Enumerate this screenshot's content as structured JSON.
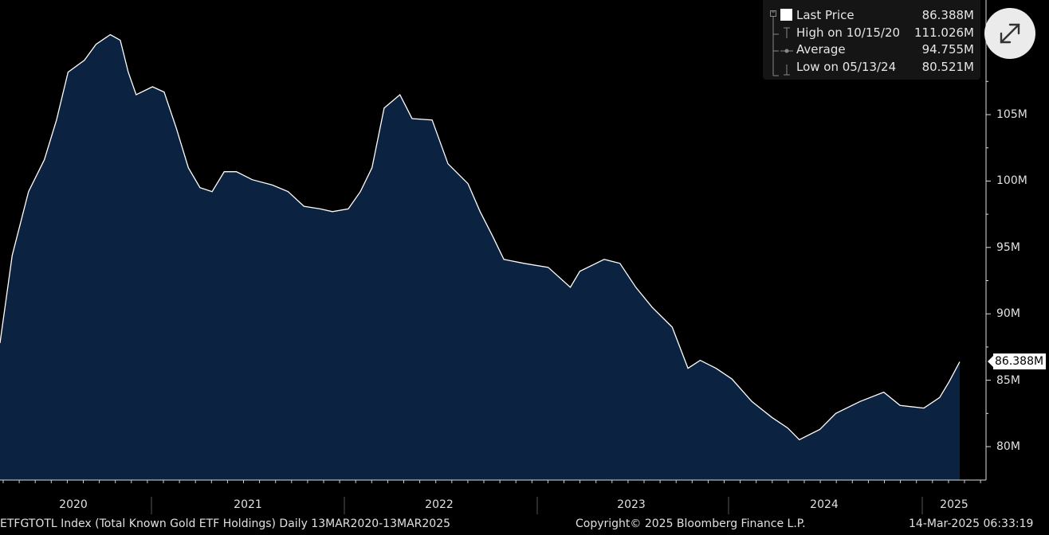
{
  "chart_data": {
    "type": "area",
    "title": "",
    "xlabel": "",
    "ylabel": "",
    "x": [
      "2020-03-13",
      "2020-04-12",
      "2020-05-13",
      "2020-06-12",
      "2020-07-05",
      "2020-07-27",
      "2020-08-27",
      "2020-09-18",
      "2020-10-15",
      "2020-11-03",
      "2020-11-18",
      "2020-12-03",
      "2021-01-03",
      "2021-01-25",
      "2021-02-17",
      "2021-03-12",
      "2021-04-03",
      "2021-04-26",
      "2021-05-19",
      "2021-06-11",
      "2021-07-11",
      "2021-08-18",
      "2021-09-17",
      "2021-10-17",
      "2021-11-17",
      "2021-12-10",
      "2022-01-09",
      "2022-02-01",
      "2022-02-23",
      "2022-03-18",
      "2022-04-17",
      "2022-05-10",
      "2022-06-17",
      "2022-07-17",
      "2022-08-24",
      "2022-09-16",
      "2022-10-09",
      "2022-10-31",
      "2022-12-08",
      "2023-01-23",
      "2023-03-06",
      "2023-03-24",
      "2023-05-09",
      "2023-06-08",
      "2023-07-08",
      "2023-08-08",
      "2023-09-15",
      "2023-10-15",
      "2023-11-07",
      "2023-12-07",
      "2024-01-06",
      "2024-02-13",
      "2024-03-22",
      "2024-04-21",
      "2024-05-13",
      "2024-06-21",
      "2024-07-21",
      "2024-09-05",
      "2024-10-20",
      "2024-11-20",
      "2025-01-04",
      "2025-02-03",
      "2025-02-21",
      "2025-03-13"
    ],
    "series": [
      {
        "values": [
          87.8,
          94.4,
          99.2,
          101.6,
          104.6,
          108.2,
          109.1,
          110.3,
          111.026,
          110.6,
          108.2,
          106.5,
          107.1,
          106.7,
          104.0,
          101.0,
          99.5,
          99.2,
          100.7,
          100.7,
          100.1,
          99.7,
          99.2,
          98.1,
          97.9,
          97.7,
          97.9,
          99.2,
          101.0,
          105.5,
          106.5,
          104.7,
          104.6,
          101.3,
          99.8,
          97.7,
          95.9,
          94.1,
          93.8,
          93.5,
          92.0,
          93.2,
          94.1,
          93.8,
          92.0,
          90.5,
          89.0,
          85.9,
          86.5,
          85.9,
          85.1,
          83.4,
          82.2,
          81.4,
          80.521,
          81.3,
          82.5,
          83.4,
          84.1,
          83.1,
          82.9,
          83.7,
          84.9,
          86.388
        ]
      }
    ],
    "y_ticks": [
      "80M",
      "85M",
      "90M",
      "95M",
      "100M",
      "105M"
    ],
    "y_tick_values": [
      80,
      85,
      90,
      95,
      100,
      105
    ],
    "x_ticks": [
      "2020",
      "2021",
      "2022",
      "2023",
      "2024",
      "2025"
    ],
    "ylim": [
      77.5,
      116
    ],
    "xlim": [
      "2020-03-13",
      "2025-03-13"
    ],
    "grid": false,
    "legend_position": "top-right",
    "last_value_label": "86.388M",
    "colors": {
      "fill": "#0b2240",
      "line": "#ffffff",
      "background": "#000000"
    }
  },
  "legend": {
    "items": [
      {
        "label": "Last Price",
        "value": "86.388M",
        "icon": "white-square-icon"
      },
      {
        "label": "High on 10/15/20",
        "value": "111.026M",
        "icon": "high-marker-icon"
      },
      {
        "label": "Average",
        "value": "94.755M",
        "icon": "average-marker-icon"
      },
      {
        "label": "Low on 05/13/24",
        "value": "80.521M",
        "icon": "low-marker-icon"
      }
    ]
  },
  "expand_button": {
    "icon": "expand-arrows-icon"
  },
  "footer": {
    "index": "ETFGTOTL Index (Total Known Gold ETF Holdings)  Daily 13MAR2020-13MAR2025",
    "copyright": "Copyright© 2025 Bloomberg Finance L.P.",
    "timestamp": "14-Mar-2025 06:33:19"
  }
}
